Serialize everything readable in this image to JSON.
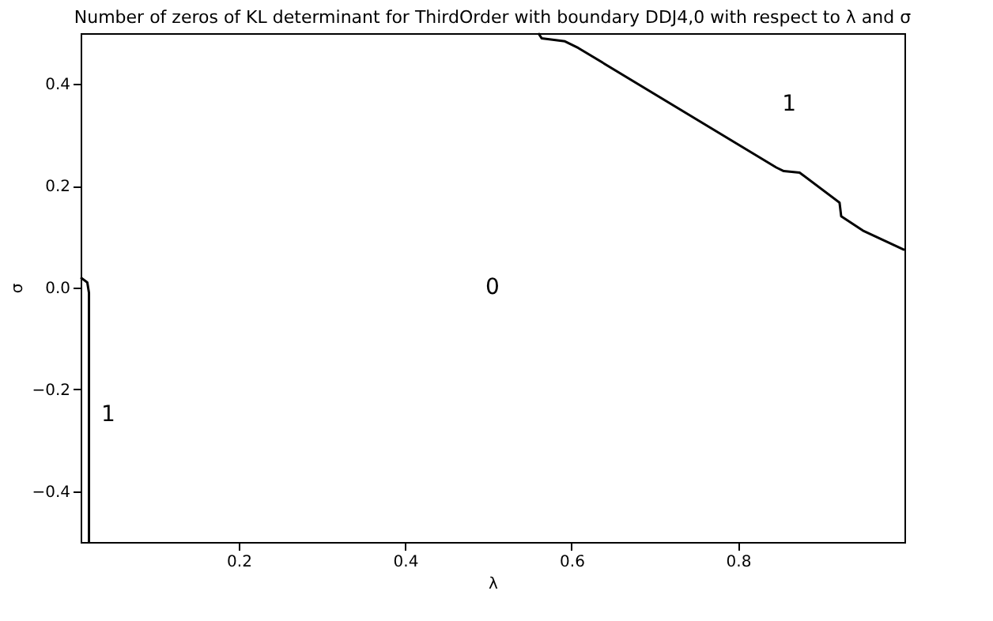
{
  "chart_data": {
    "type": "line",
    "title": "Number of zeros of KL determinant for ThirdOrder with boundary DDJ4,0 with respect to λ and σ",
    "xlabel": "λ",
    "ylabel": "σ",
    "series": [
      {
        "color": "#000000",
        "x": [
          0.01,
          0.018,
          0.02,
          0.02
        ],
        "values": [
          0.02,
          0.01,
          -0.01,
          -0.5
        ]
      },
      {
        "color": "#000000",
        "x": [
          0.56,
          0.564,
          0.592,
          0.608,
          0.846,
          0.855,
          0.874,
          0.922,
          0.924,
          0.95,
          1.0
        ],
        "values": [
          0.5,
          0.49,
          0.484,
          0.471,
          0.236,
          0.229,
          0.226,
          0.167,
          0.14,
          0.112,
          0.074
        ]
      }
    ],
    "annotations": [
      "1",
      "0",
      "1"
    ],
    "xlim": [
      0.01,
      1.0
    ],
    "ylim": [
      -0.5,
      0.5
    ],
    "xticks": [
      0.2,
      0.4,
      0.6,
      0.8
    ],
    "yticks": [
      {
        "value": -0.4,
        "label": "−0.4"
      },
      {
        "value": -0.2,
        "label": "−0.2"
      },
      {
        "value": 0,
        "label": "0.0"
      },
      0.2,
      0.4
    ],
    "grid": false
  }
}
